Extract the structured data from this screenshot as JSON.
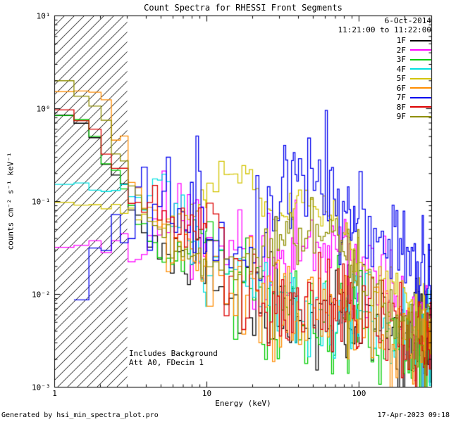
{
  "title": "Count Spectra for RHESSI Front Segments",
  "header": {
    "date": "6-Oct-2014",
    "time_range": "11:21:00 to 11:22:00"
  },
  "annotations": {
    "line1": "Includes Background",
    "line2": "Att A0, FDecim 1"
  },
  "footer": {
    "left": "Generated by hsi_min_spectra_plot.pro",
    "right": "17-Apr-2023 09:18"
  },
  "axes": {
    "xlabel": "Energy (keV)",
    "ylabel": "counts cm⁻² s⁻¹ keV⁻¹",
    "xscale": "log",
    "yscale": "log",
    "xlim": [
      1,
      300
    ],
    "ylim": [
      0.001,
      10
    ],
    "x_ticks": [
      {
        "value": 1,
        "label": "1"
      },
      {
        "value": 10,
        "label": "10"
      },
      {
        "value": 100,
        "label": "100"
      }
    ],
    "y_ticks": [
      {
        "value": 10,
        "label": "10¹"
      },
      {
        "value": 1,
        "label": "10⁰"
      },
      {
        "value": 0.1,
        "label": "10⁻¹"
      },
      {
        "value": 0.01,
        "label": "10⁻²"
      },
      {
        "value": 0.001,
        "label": "10⁻³"
      }
    ]
  },
  "chart_data": {
    "type": "line",
    "style": "histogram-step",
    "title": "Count Spectra for RHESSI Front Segments",
    "legend_position": "top-right",
    "grid": false,
    "hatched_region": {
      "x_start": 1,
      "x_end": 3
    },
    "bin_scheme": [
      [
        1,
        10,
        0.34
      ],
      [
        10,
        40,
        1
      ],
      [
        40,
        100,
        2
      ],
      [
        100,
        300,
        5
      ]
    ],
    "series": [
      {
        "name": "1F",
        "color": "#000000",
        "seed": 11,
        "start": 1,
        "points": [
          [
            1,
            1.0
          ],
          [
            1.4,
            0.85
          ],
          [
            1.8,
            0.55
          ],
          [
            2.2,
            0.32
          ],
          [
            2.7,
            0.18
          ],
          [
            3.2,
            0.09
          ],
          [
            4,
            0.045
          ],
          [
            5,
            0.03
          ],
          [
            6.5,
            0.022
          ],
          [
            8,
            0.018
          ],
          [
            10,
            0.03
          ],
          [
            12,
            0.014
          ],
          [
            16,
            0.009
          ],
          [
            22,
            0.008
          ],
          [
            30,
            0.007
          ],
          [
            45,
            0.006
          ],
          [
            70,
            0.005
          ],
          [
            110,
            0.0045
          ],
          [
            180,
            0.004
          ],
          [
            300,
            0.0035
          ]
        ],
        "sigma": [
          [
            1,
            0.03
          ],
          [
            3,
            0.06
          ],
          [
            6,
            0.15
          ],
          [
            15,
            0.25
          ],
          [
            40,
            0.27
          ],
          [
            300,
            0.3
          ]
        ]
      },
      {
        "name": "2F",
        "color": "#ff00ff",
        "seed": 22,
        "start": 1,
        "points": [
          [
            1,
            0.032
          ],
          [
            2,
            0.031
          ],
          [
            3,
            0.033
          ],
          [
            4,
            0.045
          ],
          [
            5,
            0.06
          ],
          [
            6.5,
            0.08
          ],
          [
            8,
            0.07
          ],
          [
            10,
            0.055
          ],
          [
            13,
            0.035
          ],
          [
            18,
            0.025
          ],
          [
            25,
            0.025
          ],
          [
            35,
            0.035
          ],
          [
            50,
            0.045
          ],
          [
            70,
            0.035
          ],
          [
            95,
            0.018
          ],
          [
            140,
            0.009
          ],
          [
            200,
            0.006
          ],
          [
            300,
            0.004
          ]
        ],
        "sigma": [
          [
            1,
            0.04
          ],
          [
            3,
            0.1
          ],
          [
            8,
            0.22
          ],
          [
            30,
            0.25
          ],
          [
            300,
            0.3
          ]
        ]
      },
      {
        "name": "3F",
        "color": "#00cc00",
        "seed": 33,
        "start": 1,
        "points": [
          [
            1,
            0.9
          ],
          [
            1.4,
            0.78
          ],
          [
            1.8,
            0.5
          ],
          [
            2.2,
            0.3
          ],
          [
            2.7,
            0.16
          ],
          [
            3.2,
            0.08
          ],
          [
            4,
            0.045
          ],
          [
            5,
            0.03
          ],
          [
            7,
            0.022
          ],
          [
            9,
            0.035
          ],
          [
            10,
            0.11
          ],
          [
            11,
            0.04
          ],
          [
            14,
            0.013
          ],
          [
            20,
            0.009
          ],
          [
            30,
            0.007
          ],
          [
            50,
            0.0055
          ],
          [
            80,
            0.0048
          ],
          [
            130,
            0.004
          ],
          [
            200,
            0.0033
          ],
          [
            300,
            0.0028
          ]
        ],
        "sigma": [
          [
            1,
            0.03
          ],
          [
            3,
            0.07
          ],
          [
            7,
            0.18
          ],
          [
            15,
            0.25
          ],
          [
            300,
            0.3
          ]
        ]
      },
      {
        "name": "4F",
        "color": "#00e0e0",
        "seed": 44,
        "start": 1,
        "points": [
          [
            1,
            0.15
          ],
          [
            1.6,
            0.15
          ],
          [
            2.2,
            0.14
          ],
          [
            3,
            0.12
          ],
          [
            3.8,
            0.09
          ],
          [
            4.5,
            0.22
          ],
          [
            5.2,
            0.12
          ],
          [
            6,
            0.08
          ],
          [
            7.5,
            0.055
          ],
          [
            9,
            0.04
          ],
          [
            10.2,
            0.004
          ],
          [
            11,
            0.025
          ],
          [
            13,
            0.02
          ],
          [
            17,
            0.014
          ],
          [
            24,
            0.01
          ],
          [
            35,
            0.008
          ],
          [
            55,
            0.0065
          ],
          [
            90,
            0.0055
          ],
          [
            150,
            0.0045
          ],
          [
            300,
            0.0035
          ]
        ],
        "sigma": [
          [
            1,
            0.02
          ],
          [
            3,
            0.06
          ],
          [
            6,
            0.18
          ],
          [
            15,
            0.25
          ],
          [
            300,
            0.3
          ]
        ]
      },
      {
        "name": "5F",
        "color": "#d2c400",
        "seed": 55,
        "start": 1,
        "points": [
          [
            1,
            0.095
          ],
          [
            1.8,
            0.09
          ],
          [
            2.6,
            0.085
          ],
          [
            3.5,
            0.07
          ],
          [
            4.5,
            0.055
          ],
          [
            6,
            0.055
          ],
          [
            8,
            0.075
          ],
          [
            10,
            0.11
          ],
          [
            13,
            0.2
          ],
          [
            16,
            0.27
          ],
          [
            19,
            0.2
          ],
          [
            23,
            0.1
          ],
          [
            28,
            0.065
          ],
          [
            35,
            0.07
          ],
          [
            45,
            0.09
          ],
          [
            60,
            0.085
          ],
          [
            75,
            0.055
          ],
          [
            95,
            0.03
          ],
          [
            120,
            0.017
          ],
          [
            160,
            0.01
          ],
          [
            220,
            0.006
          ],
          [
            300,
            0.004
          ]
        ],
        "sigma": [
          [
            1,
            0.02
          ],
          [
            5,
            0.05
          ],
          [
            10,
            0.08
          ],
          [
            40,
            0.1
          ],
          [
            120,
            0.15
          ],
          [
            300,
            0.25
          ]
        ]
      },
      {
        "name": "6F",
        "color": "#ff8c00",
        "seed": 66,
        "start": 1,
        "points": [
          [
            1,
            1.4
          ],
          [
            1.25,
            1.1
          ],
          [
            1.55,
            1.7
          ],
          [
            1.9,
            1.3
          ],
          [
            2.3,
            0.7
          ],
          [
            2.8,
            0.3
          ],
          [
            3.4,
            0.13
          ],
          [
            4.2,
            0.07
          ],
          [
            5.2,
            0.045
          ],
          [
            7,
            0.03
          ],
          [
            9,
            0.022
          ],
          [
            12,
            0.015
          ],
          [
            17,
            0.011
          ],
          [
            25,
            0.009
          ],
          [
            40,
            0.0075
          ],
          [
            65,
            0.0065
          ],
          [
            100,
            0.0055
          ],
          [
            160,
            0.0045
          ],
          [
            300,
            0.0038
          ]
        ],
        "sigma": [
          [
            1,
            0.05
          ],
          [
            3,
            0.08
          ],
          [
            7,
            0.18
          ],
          [
            20,
            0.25
          ],
          [
            300,
            0.28
          ]
        ]
      },
      {
        "name": "7F",
        "color": "#0000ee",
        "seed": 77,
        "start": 1.2,
        "points": [
          [
            1.15,
            0.012
          ],
          [
            1.5,
            0.013
          ],
          [
            1.9,
            0.02
          ],
          [
            2.4,
            0.035
          ],
          [
            3,
            0.05
          ],
          [
            4,
            0.07
          ],
          [
            5,
            0.09
          ],
          [
            6.5,
            0.09
          ],
          [
            8,
            0.08
          ],
          [
            10,
            0.055
          ],
          [
            13,
            0.055
          ],
          [
            17,
            0.05
          ],
          [
            22,
            0.06
          ],
          [
            30,
            0.1
          ],
          [
            40,
            0.13
          ],
          [
            55,
            0.16
          ],
          [
            70,
            0.15
          ],
          [
            85,
            0.12
          ],
          [
            100,
            0.08
          ],
          [
            120,
            0.05
          ],
          [
            150,
            0.03
          ],
          [
            190,
            0.02
          ],
          [
            240,
            0.014
          ],
          [
            300,
            0.012
          ]
        ],
        "sigma": [
          [
            1,
            0.15
          ],
          [
            3,
            0.3
          ],
          [
            10,
            0.3
          ],
          [
            30,
            0.3
          ],
          [
            100,
            0.32
          ],
          [
            300,
            0.35
          ]
        ]
      },
      {
        "name": "8F",
        "color": "#dd0000",
        "seed": 88,
        "start": 1,
        "points": [
          [
            1,
            1.05
          ],
          [
            1.4,
            0.92
          ],
          [
            1.8,
            0.6
          ],
          [
            2.2,
            0.35
          ],
          [
            2.7,
            0.2
          ],
          [
            3.2,
            0.12
          ],
          [
            4,
            0.1
          ],
          [
            5,
            0.07
          ],
          [
            6.5,
            0.05
          ],
          [
            8,
            0.055
          ],
          [
            9.5,
            0.07
          ],
          [
            11,
            0.035
          ],
          [
            14,
            0.016
          ],
          [
            19,
            0.011
          ],
          [
            27,
            0.009
          ],
          [
            40,
            0.008
          ],
          [
            60,
            0.007
          ],
          [
            90,
            0.006
          ],
          [
            140,
            0.005
          ],
          [
            210,
            0.0042
          ],
          [
            300,
            0.0038
          ]
        ],
        "sigma": [
          [
            1,
            0.03
          ],
          [
            3,
            0.07
          ],
          [
            7,
            0.18
          ],
          [
            15,
            0.25
          ],
          [
            300,
            0.3
          ]
        ]
      },
      {
        "name": "9F",
        "color": "#8f8f00",
        "seed": 99,
        "start": 1,
        "points": [
          [
            1,
            2.0
          ],
          [
            1.3,
            1.85
          ],
          [
            1.6,
            1.25
          ],
          [
            2,
            0.75
          ],
          [
            2.4,
            0.42
          ],
          [
            2.9,
            0.22
          ],
          [
            3.5,
            0.11
          ],
          [
            4.3,
            0.06
          ],
          [
            5.5,
            0.04
          ],
          [
            7,
            0.03
          ],
          [
            9,
            0.026
          ],
          [
            12,
            0.022
          ],
          [
            16,
            0.02
          ],
          [
            21,
            0.024
          ],
          [
            28,
            0.032
          ],
          [
            38,
            0.042
          ],
          [
            50,
            0.046
          ],
          [
            65,
            0.04
          ],
          [
            80,
            0.028
          ],
          [
            100,
            0.016
          ],
          [
            130,
            0.009
          ],
          [
            180,
            0.006
          ],
          [
            250,
            0.0045
          ],
          [
            300,
            0.004
          ]
        ],
        "sigma": [
          [
            1,
            0.03
          ],
          [
            3,
            0.06
          ],
          [
            8,
            0.12
          ],
          [
            30,
            0.15
          ],
          [
            100,
            0.2
          ],
          [
            300,
            0.28
          ]
        ]
      }
    ]
  }
}
